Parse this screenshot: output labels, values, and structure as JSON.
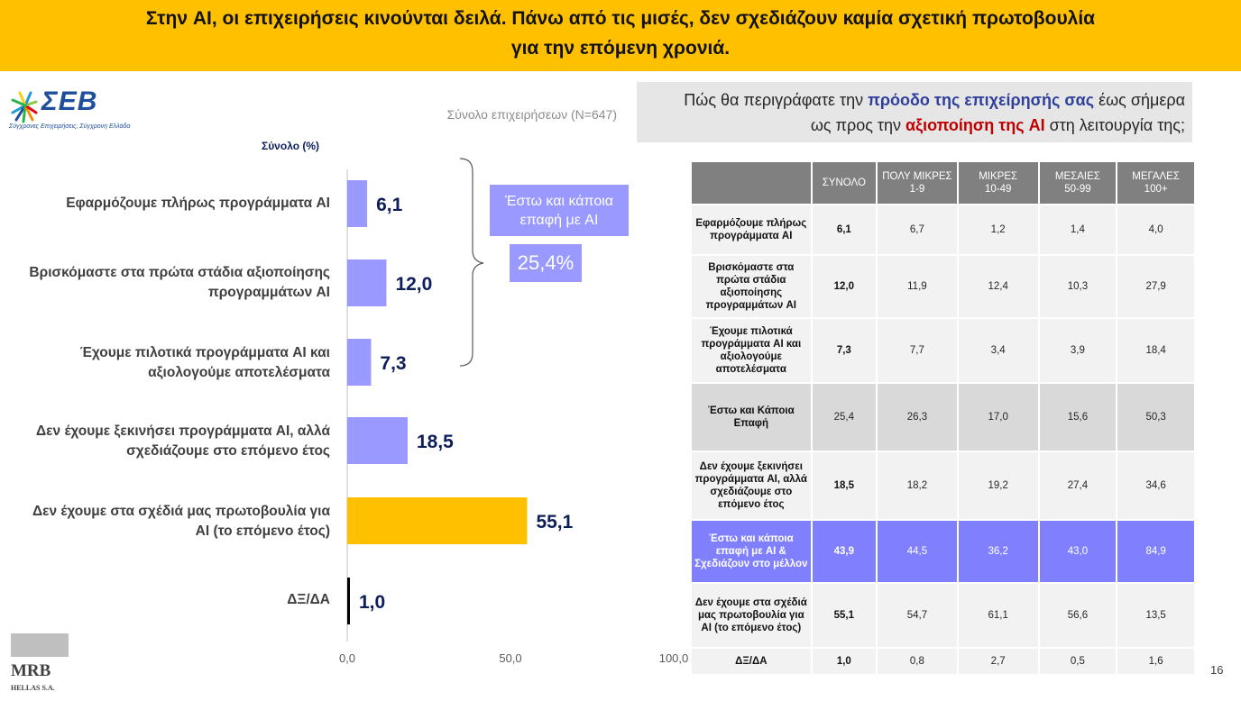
{
  "header": {
    "line1": "Στην AI, οι επιχειρήσεις κινούνται δειλά. Πάνω από τις μισές, δεν σχεδιάζουν καμία σχετική πρωτοβουλία",
    "line2": "για την επόμενη χρονιά."
  },
  "logo": {
    "name": "ΣΕΒ",
    "tagline": "Σύγχρονες Επιχειρήσεις, Σύγχρονη Ελλάδα"
  },
  "base_note": "Σύνολο επιχειρήσεων (N=647)",
  "question": {
    "part1": "Πώς θα περιγράφατε την ",
    "highlight1": "πρόοδο της επιχείρησής σας",
    "part2": " έως σήμερα",
    "part3": "ως προς την ",
    "highlight2": "αξιοποίηση της AI",
    "part4": " στη λειτουργία της;"
  },
  "callout": {
    "label": "Έστω και κάποια επαφή με AI",
    "value": "25,4%"
  },
  "chart_data": {
    "type": "bar",
    "orientation": "horizontal",
    "ylabel": "Σύνολο  (%)",
    "categories": [
      "Εφαρμόζουμε πλήρως  προγράμματα AI",
      "Βρισκόμαστε στα πρώτα στάδια αξιοποίησης προγραμμάτων AI",
      "Έχουμε πιλοτικά προγράμματα AI και αξιολογούμε  αποτελέσματα",
      "Δεν έχουμε ξεκινήσει προγράμματα AI, αλλά σχεδιάζουμε στο επόμενο έτος",
      "Δεν έχουμε στα σχέδιά μας  πρωτοβουλία για AI (το επόμενο έτος)",
      "ΔΞ/ΔΑ"
    ],
    "category_lines": [
      [
        "Εφαρμόζουμε πλήρως  προγράμματα AI"
      ],
      [
        "Βρισκόμαστε στα πρώτα στάδια αξιοποίησης",
        "προγραμμάτων AI"
      ],
      [
        "Έχουμε πιλοτικά προγράμματα AI και",
        "αξιολογούμε  αποτελέσματα"
      ],
      [
        "Δεν έχουμε ξεκινήσει προγράμματα AI, αλλά",
        "σχεδιάζουμε στο επόμενο έτος"
      ],
      [
        "Δεν έχουμε στα σχέδιά μας  πρωτοβουλία για",
        "AI (το επόμενο έτος)"
      ],
      [
        "ΔΞ/ΔΑ"
      ]
    ],
    "values": [
      6.1,
      12.0,
      7.3,
      18.5,
      55.1,
      1.0
    ],
    "value_labels": [
      "6,1",
      "12,0",
      "7,3",
      "18,5",
      "55,1",
      "1,0"
    ],
    "colors": [
      "#9999FF",
      "#9999FF",
      "#9999FF",
      "#9999FF",
      "#FFC000",
      "#000000"
    ],
    "xlim": [
      0,
      100
    ],
    "xticks": [
      0,
      50,
      100
    ],
    "xtick_labels": [
      "0,0",
      "50,0",
      "100,0"
    ],
    "grid": false,
    "legend": "none"
  },
  "table": {
    "headers": [
      {
        "line1": "",
        "line2": ""
      },
      {
        "line1": "ΣΥΝΟΛΟ",
        "line2": ""
      },
      {
        "line1": "ΠΟΛΥ ΜΙΚΡΕΣ",
        "line2": "1-9"
      },
      {
        "line1": "ΜΙΚΡΕΣ",
        "line2": "10-49"
      },
      {
        "line1": "ΜΕΣΑΙΕΣ",
        "line2": "50-99"
      },
      {
        "line1": "ΜΕΓΑΛΕΣ",
        "line2": "100+"
      }
    ],
    "rows": [
      {
        "style": "normal",
        "label": "Εφαρμόζουμε πλήρως προγράμματα AI",
        "values": [
          "6,1",
          "6,7",
          "1,2",
          "1,4",
          "4,0"
        ]
      },
      {
        "style": "normal",
        "label": "Βρισκόμαστε στα πρώτα στάδια αξιοποίησης προγραμμάτων AI",
        "values": [
          "12,0",
          "11,9",
          "12,4",
          "10,3",
          "27,9"
        ]
      },
      {
        "style": "normal",
        "label": "Έχουμε πιλοτικά προγράμματα AI και αξιολογούμε αποτελέσματα",
        "values": [
          "7,3",
          "7,7",
          "3,4",
          "3,9",
          "18,4"
        ]
      },
      {
        "style": "gray",
        "label": "Έστω και Κάποια Επαφή",
        "values": [
          "25,4",
          "26,3",
          "17,0",
          "15,6",
          "50,3"
        ]
      },
      {
        "style": "normal",
        "label": "Δεν έχουμε ξεκινήσει προγράμματα AI, αλλά σχεδιάζουμε στο επόμενο έτος",
        "values": [
          "18,5",
          "18,2",
          "19,2",
          "27,4",
          "34,6"
        ]
      },
      {
        "style": "purple",
        "label": "Έστω και κάποια επαφή με AI & Σχεδιάζουν στο μέλλον",
        "values": [
          "43,9",
          "44,5",
          "36,2",
          "43,0",
          "84,9"
        ]
      },
      {
        "style": "normal",
        "label": "Δεν έχουμε στα σχέδιά μας πρωτοβουλία για AI (το επόμενο έτος)",
        "values": [
          "55,1",
          "54,7",
          "61,1",
          "56,6",
          "13,5"
        ]
      },
      {
        "style": "normal",
        "label": "ΔΞ/ΔΑ",
        "values": [
          "1,0",
          "0,8",
          "2,7",
          "0,5",
          "1,6"
        ]
      }
    ]
  },
  "footer": {
    "mrb_name": "MRB",
    "mrb_sub": "HELLAS S.A.",
    "page_number": "16"
  }
}
